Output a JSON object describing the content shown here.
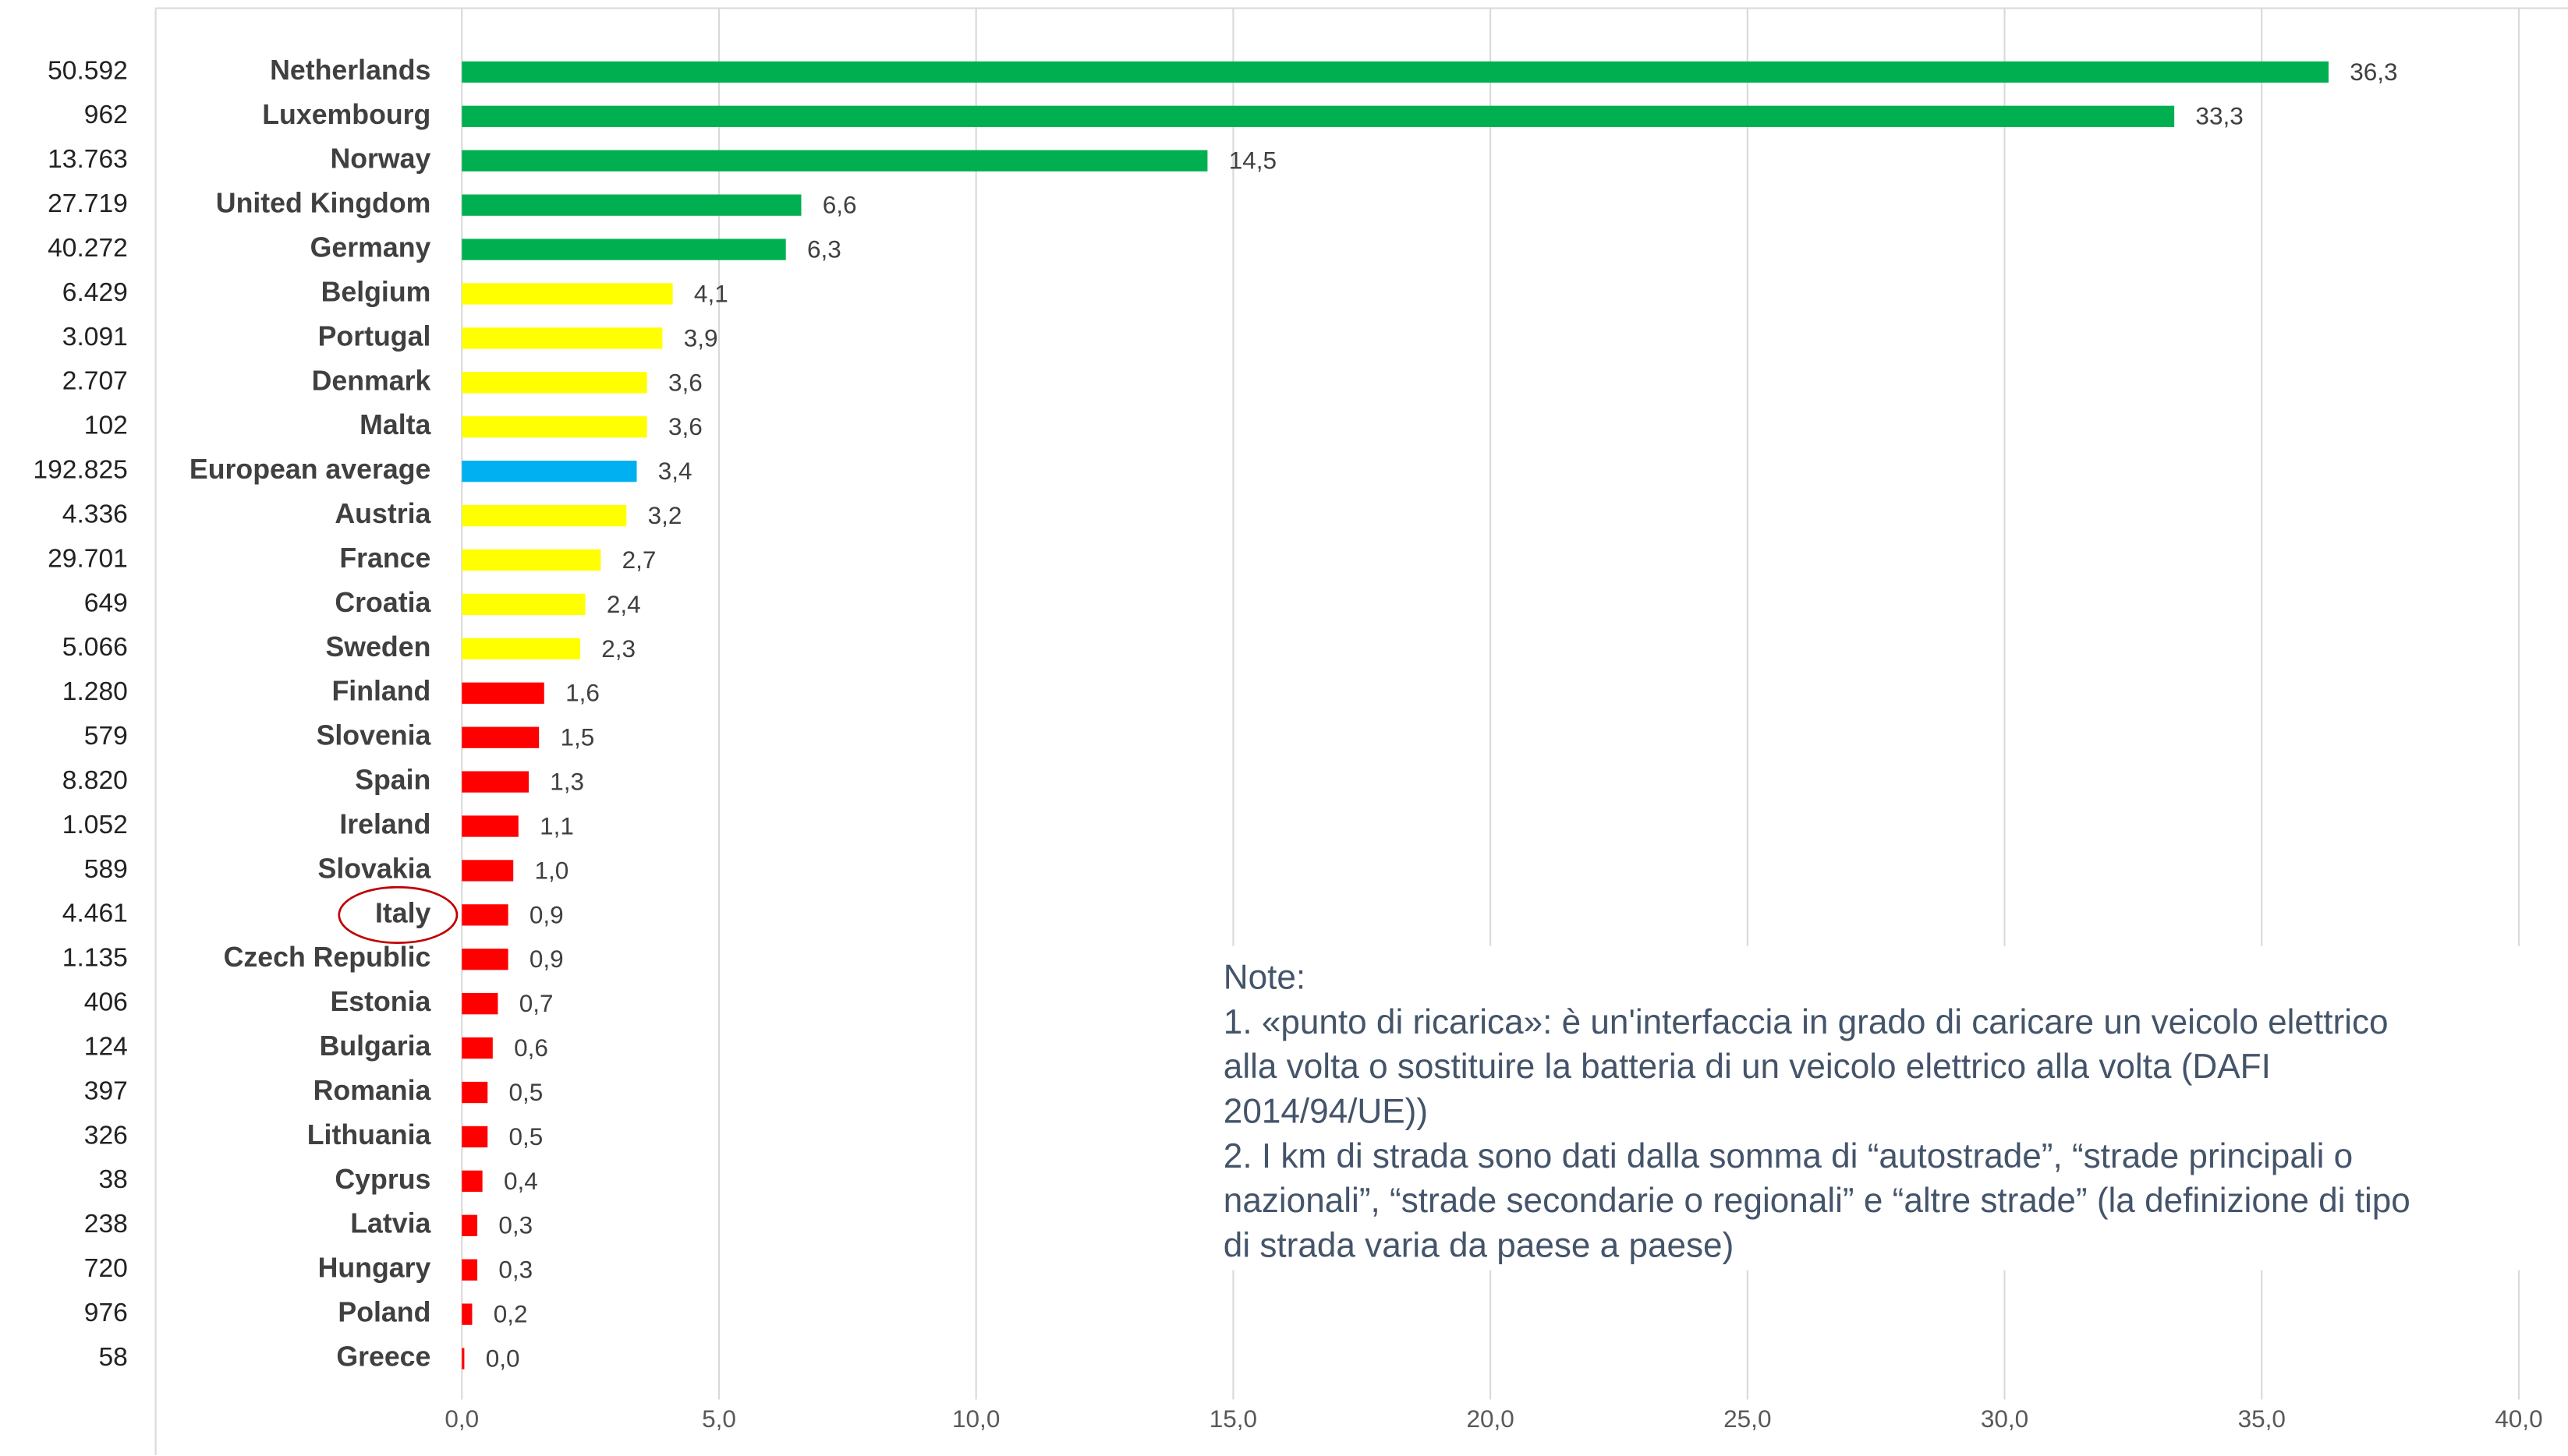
{
  "chart_data": {
    "type": "bar",
    "orientation": "horizontal",
    "categories": [
      "Netherlands",
      "Luxembourg",
      "Norway",
      "United Kingdom",
      "Germany",
      "Belgium",
      "Portugal",
      "Denmark",
      "Malta",
      "European average",
      "Austria",
      "France",
      "Croatia",
      "Sweden",
      "Finland",
      "Slovenia",
      "Spain",
      "Ireland",
      "Slovakia",
      "Italy",
      "Czech Republic",
      "Estonia",
      "Bulgaria",
      "Romania",
      "Lithuania",
      "Cyprus",
      "Latvia",
      "Hungary",
      "Poland",
      "Greece"
    ],
    "left_labels": [
      "50.592",
      "962",
      "13.763",
      "27.719",
      "40.272",
      "6.429",
      "3.091",
      "2.707",
      "102",
      "192.825",
      "4.336",
      "29.701",
      "649",
      "5.066",
      "1.280",
      "579",
      "8.820",
      "1.052",
      "589",
      "4.461",
      "1.135",
      "406",
      "124",
      "397",
      "326",
      "38",
      "238",
      "720",
      "976",
      "58"
    ],
    "values": [
      36.3,
      33.3,
      14.5,
      6.6,
      6.3,
      4.1,
      3.9,
      3.6,
      3.6,
      3.4,
      3.2,
      2.7,
      2.4,
      2.3,
      1.6,
      1.5,
      1.3,
      1.1,
      1.0,
      0.9,
      0.9,
      0.7,
      0.6,
      0.5,
      0.5,
      0.4,
      0.3,
      0.3,
      0.2,
      0.0
    ],
    "value_labels": [
      "36,3",
      "33,3",
      "14,5",
      "6,6",
      "6,3",
      "4,1",
      "3,9",
      "3,6",
      "3,6",
      "3,4",
      "3,2",
      "2,7",
      "2,4",
      "2,3",
      "1,6",
      "1,5",
      "1,3",
      "1,1",
      "1,0",
      "0,9",
      "0,9",
      "0,7",
      "0,6",
      "0,5",
      "0,5",
      "0,4",
      "0,3",
      "0,3",
      "0,2",
      "0,0"
    ],
    "colors": [
      "#00b050",
      "#00b050",
      "#00b050",
      "#00b050",
      "#00b050",
      "#ffff00",
      "#ffff00",
      "#ffff00",
      "#ffff00",
      "#00b0f0",
      "#ffff00",
      "#ffff00",
      "#ffff00",
      "#ffff00",
      "#ff0000",
      "#ff0000",
      "#ff0000",
      "#ff0000",
      "#ff0000",
      "#ff0000",
      "#ff0000",
      "#ff0000",
      "#ff0000",
      "#ff0000",
      "#ff0000",
      "#ff0000",
      "#ff0000",
      "#ff0000",
      "#ff0000",
      "#ff0000"
    ],
    "xlim": [
      0,
      40
    ],
    "xticks": [
      {
        "value": 0,
        "label": "0,0"
      },
      {
        "value": 5,
        "label": "5,0"
      },
      {
        "value": 10,
        "label": "10,0"
      },
      {
        "value": 15,
        "label": "15,0"
      },
      {
        "value": 20,
        "label": "20,0"
      },
      {
        "value": 25,
        "label": "25,0"
      },
      {
        "value": 30,
        "label": "30,0"
      },
      {
        "value": 35,
        "label": "35,0"
      },
      {
        "value": 40,
        "label": "40,0"
      }
    ],
    "grid": true,
    "note": [
      "Note:",
      "1. «punto di ricarica»: è un'interfaccia in grado di caricare un veicolo elettrico",
      "alla volta o sostituire la batteria di un veicolo elettrico alla volta (DAFI",
      "2014/94/UE))",
      "2. I km di strada sono dati dalla somma di “autostrade”, “strade principali o",
      "nazionali”, “strade secondarie o regionali” e “altre strade” (la definizione di tipo",
      "di strada varia da paese a paese)"
    ]
  }
}
